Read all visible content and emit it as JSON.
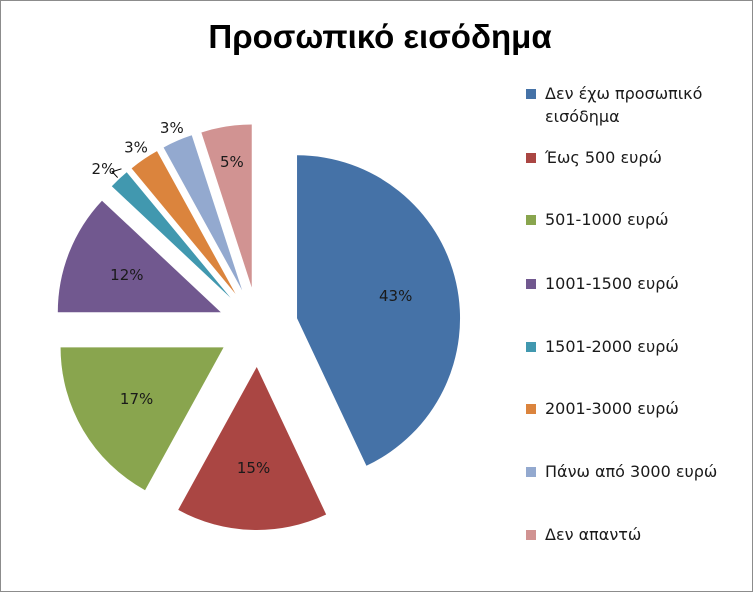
{
  "chart_data": {
    "type": "pie",
    "title": "Προσωπικό εισόδημα",
    "categories": [
      "Δεν έχω προσωπικό εισόδημα",
      "Έως 500 ευρώ",
      "501-1000 ευρώ",
      "1001-1500 ευρώ",
      "1501-2000 ευρώ",
      "2001-3000 ευρώ",
      "Πάνω από 3000 ευρώ",
      "Δεν απαντώ"
    ],
    "values": [
      43,
      15,
      17,
      12,
      2,
      3,
      3,
      5
    ],
    "data_labels": [
      "43%",
      "15%",
      "17%",
      "12%",
      "2%",
      "3%",
      "3%",
      "5%"
    ],
    "colors": [
      "#4572A7",
      "#AA4643",
      "#89A54E",
      "#71588F",
      "#4198AF",
      "#DB843D",
      "#93A9CF",
      "#D19392"
    ],
    "exploded": true,
    "legend_position": "right"
  }
}
